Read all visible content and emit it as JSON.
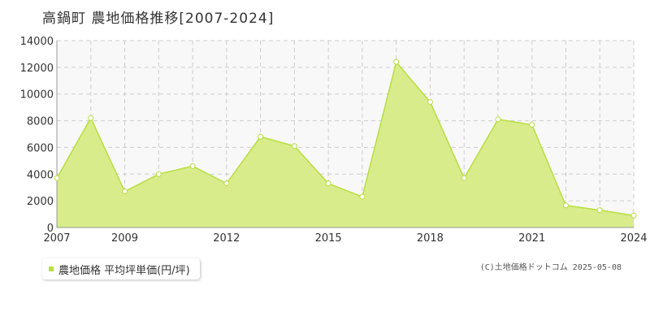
{
  "title": "高鍋町 農地価格推移[2007-2024]",
  "credit": "(C)土地価格ドットコム 2025-05-08",
  "colors": {
    "fill": "#d8ec8c",
    "line": "#b8de3f",
    "marker_fill": "#ffffff",
    "grid": "#cccccc",
    "plot_bg": "#f8f8f8",
    "axis_text": "#333333"
  },
  "chart_data": {
    "type": "area",
    "x": [
      2007,
      2008,
      2009,
      2010,
      2011,
      2012,
      2013,
      2014,
      2015,
      2016,
      2017,
      2018,
      2019,
      2020,
      2021,
      2022,
      2023,
      2024
    ],
    "series": [
      {
        "name": "農地価格 平均坪単価(円/坪)",
        "values": [
          3700,
          8200,
          2700,
          4000,
          4600,
          3300,
          6800,
          6100,
          3300,
          2300,
          12400,
          9400,
          3700,
          8100,
          7700,
          1650,
          1300,
          900
        ]
      }
    ],
    "xlim": [
      2007,
      2024
    ],
    "ylim": [
      0,
      14000
    ],
    "yticks": [
      0,
      2000,
      4000,
      6000,
      8000,
      10000,
      12000,
      14000
    ],
    "xticks": [
      2007,
      2009,
      2012,
      2015,
      2018,
      2021,
      2024
    ],
    "grid": true,
    "legend_position": "bottom-left"
  }
}
